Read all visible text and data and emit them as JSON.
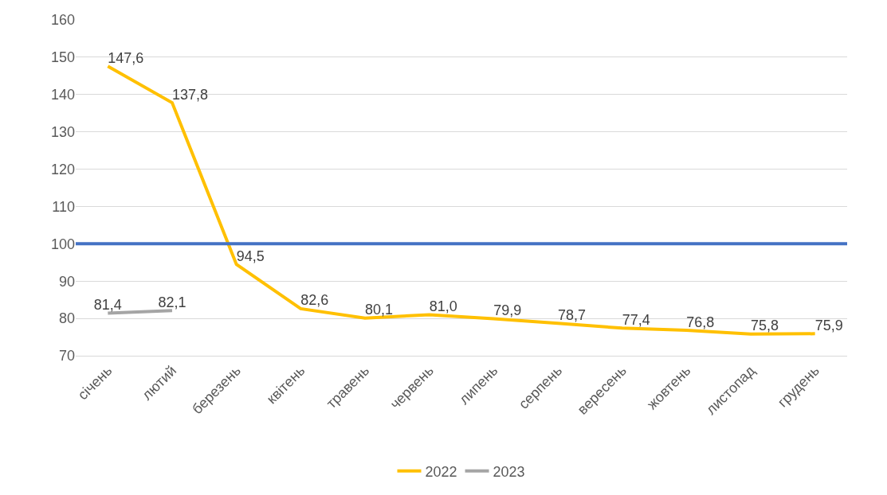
{
  "chart_data": {
    "type": "line",
    "categories": [
      "січень",
      "лютий",
      "березень",
      "квітень",
      "травень",
      "червень",
      "липень",
      "серпень",
      "вересень",
      "жовтень",
      "листопад",
      "грудень"
    ],
    "series": [
      {
        "name": "2022",
        "color": "#ffc000",
        "values": [
          147.6,
          137.8,
          94.5,
          82.6,
          80.1,
          81.0,
          79.9,
          78.7,
          77.4,
          76.8,
          75.8,
          75.9
        ],
        "value_labels": [
          "147,6",
          "137,8",
          "94,5",
          "82,6",
          "80,1",
          "81,0",
          "79,9",
          "78,7",
          "77,4",
          "76,8",
          "75,8",
          "75,9"
        ]
      },
      {
        "name": "2023",
        "color": "#a5a5a5",
        "values": [
          81.4,
          82.1,
          null,
          null,
          null,
          null,
          null,
          null,
          null,
          null,
          null,
          null
        ],
        "value_labels": [
          "81,4",
          "82,1",
          null,
          null,
          null,
          null,
          null,
          null,
          null,
          null,
          null,
          null
        ]
      }
    ],
    "ref_lines": [
      {
        "axis": "y",
        "value": 100,
        "color": "#4472c4"
      }
    ],
    "ylim": [
      70,
      160
    ],
    "yticks": [
      70,
      80,
      90,
      100,
      110,
      120,
      130,
      140,
      150,
      160
    ],
    "grid": "y",
    "legend": "bottom",
    "marker": "none",
    "line_style": "solid"
  }
}
